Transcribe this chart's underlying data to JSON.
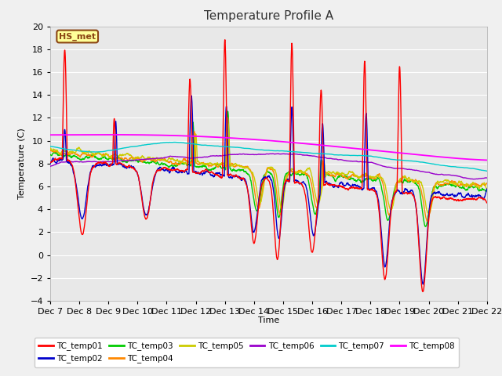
{
  "title": "Temperature Profile A",
  "xlabel": "Time",
  "ylabel": "Temperature (C)",
  "ylim": [
    -4,
    20
  ],
  "bg_color": "#f0f0f0",
  "plot_bg": "#e8e8e8",
  "annotation_text": "HS_met",
  "annotation_bg": "#ffff99",
  "annotation_border": "#8B4513",
  "series_colors": {
    "TC_temp01": "#ff0000",
    "TC_temp02": "#0000cc",
    "TC_temp03": "#00cc00",
    "TC_temp04": "#ff8800",
    "TC_temp05": "#cccc00",
    "TC_temp06": "#9900cc",
    "TC_temp07": "#00cccc",
    "TC_temp08": "#ff00ff"
  },
  "x_tick_labels": [
    "Dec 7",
    "Dec 8",
    "Dec 9",
    "Dec 10",
    "Dec 11",
    "Dec 12",
    "Dec 13",
    "Dec 14",
    "Dec 15",
    "Dec 16",
    "Dec 17",
    "Dec 18",
    "Dec 19",
    "Dec 20",
    "Dec 21",
    "Dec 22"
  ],
  "n_points": 2000
}
